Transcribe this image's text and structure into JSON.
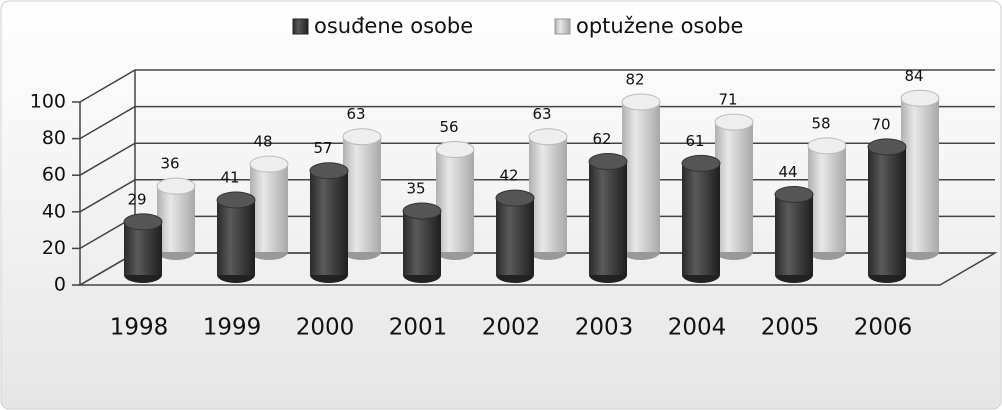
{
  "chart_data": {
    "type": "bar3d",
    "categories": [
      "1998",
      "1999",
      "2000",
      "2001",
      "2002",
      "2003",
      "2004",
      "2005",
      "2006"
    ],
    "series": [
      {
        "name": "osuđene osobe",
        "color": "#3a3a3a",
        "values": [
          29,
          41,
          57,
          35,
          42,
          62,
          61,
          44,
          70
        ]
      },
      {
        "name": "optužene osobe",
        "color": "#c8c8c8",
        "values": [
          36,
          48,
          63,
          56,
          63,
          82,
          71,
          58,
          84
        ]
      }
    ],
    "ylim": [
      0,
      100
    ],
    "yticks": [
      0,
      20,
      40,
      60,
      80,
      100
    ],
    "grid": true,
    "legend": "top"
  }
}
